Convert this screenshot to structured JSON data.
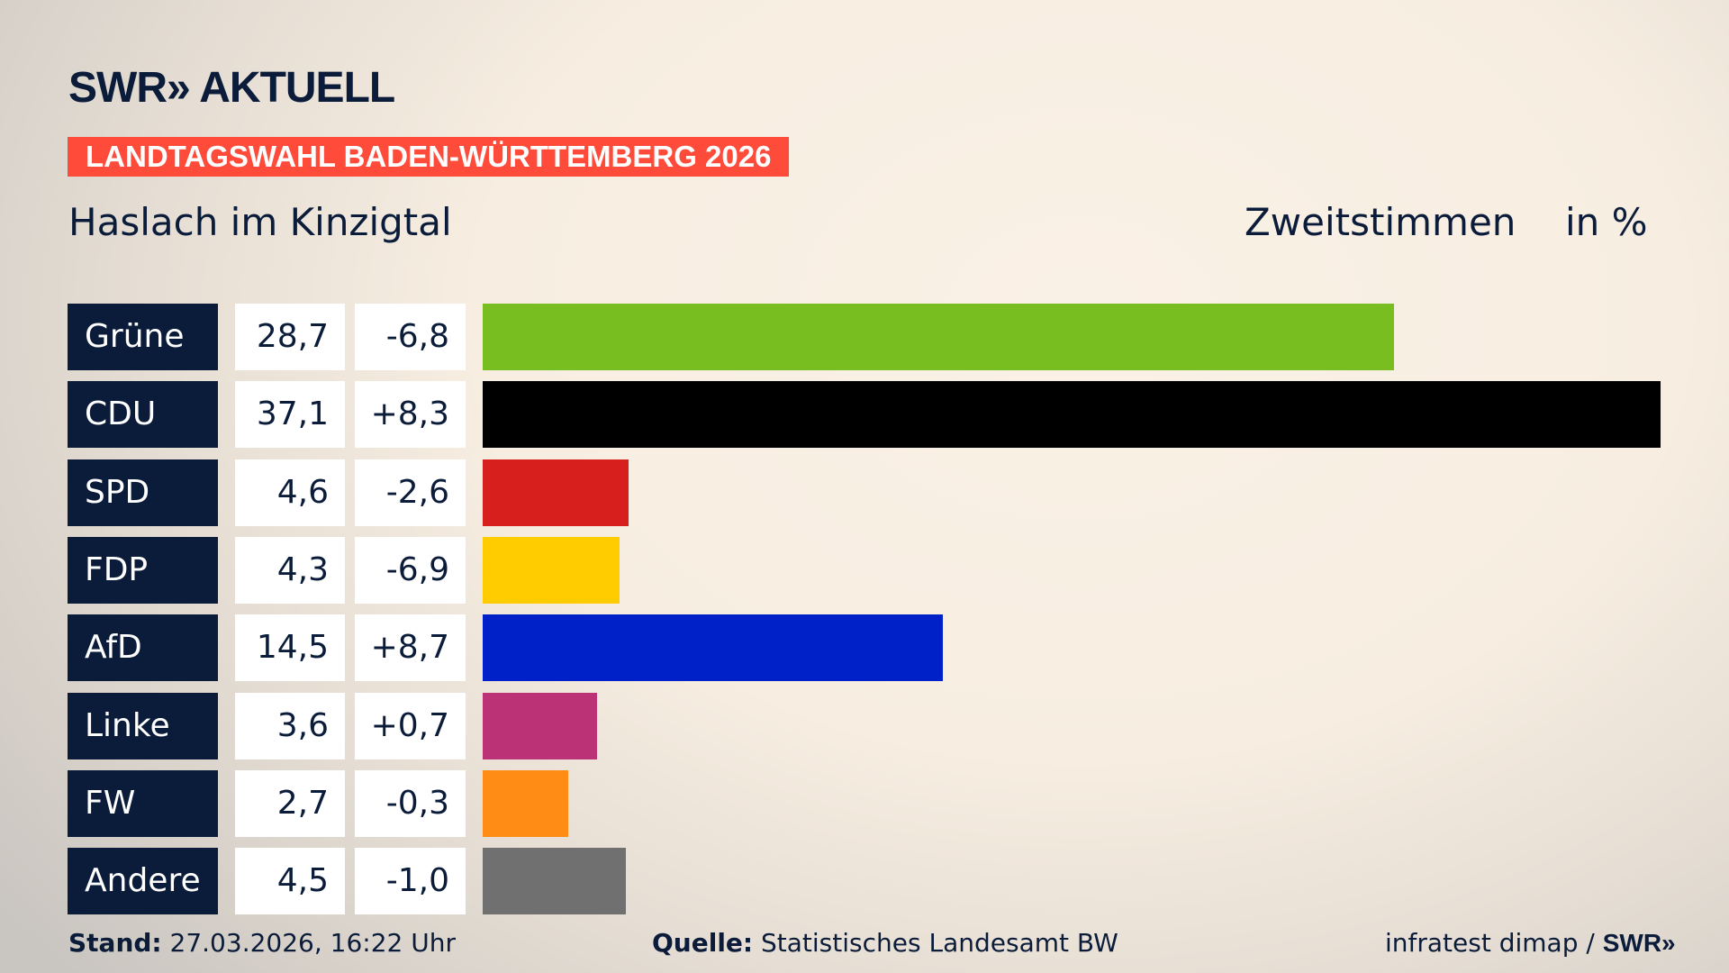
{
  "header": {
    "logo": "SWR» AKTUELL",
    "banner": "LANDTAGSWAHL BADEN-WÜRTTEMBERG 2026",
    "region": "Haslach im Kinzigtal",
    "vote_type": "Zweitstimmen",
    "unit": "in %"
  },
  "chart_data": {
    "type": "bar",
    "orientation": "horizontal",
    "categories": [
      "Grüne",
      "CDU",
      "SPD",
      "FDP",
      "AfD",
      "Linke",
      "FW",
      "Andere"
    ],
    "values": [
      28.7,
      37.1,
      4.6,
      4.3,
      14.5,
      3.6,
      2.7,
      4.5
    ],
    "value_labels": [
      "28,7",
      "37,1",
      "4,6",
      "4,3",
      "14,5",
      "3,6",
      "2,7",
      "4,5"
    ],
    "change_labels": [
      "-6,8",
      "+8,3",
      "-2,6",
      "-6,9",
      "+8,7",
      "+0,7",
      "-0,3",
      "-1,0"
    ],
    "changes": [
      -6.8,
      8.3,
      -2.6,
      -6.9,
      8.7,
      0.7,
      -0.3,
      -1.0
    ],
    "colors": [
      "#78be20",
      "#000000",
      "#d71f1d",
      "#ffcc00",
      "#0021c8",
      "#bc3276",
      "#ff8c14",
      "#707070"
    ],
    "xlim": [
      0,
      37.1
    ],
    "grid": false
  },
  "footer": {
    "stand_label": "Stand:",
    "stand_value": "27.03.2026, 16:22 Uhr",
    "source_label": "Quelle:",
    "source_value": "Statistisches Landesamt BW",
    "credit": "infratest dimap / ",
    "credit_logo": "SWR»"
  }
}
